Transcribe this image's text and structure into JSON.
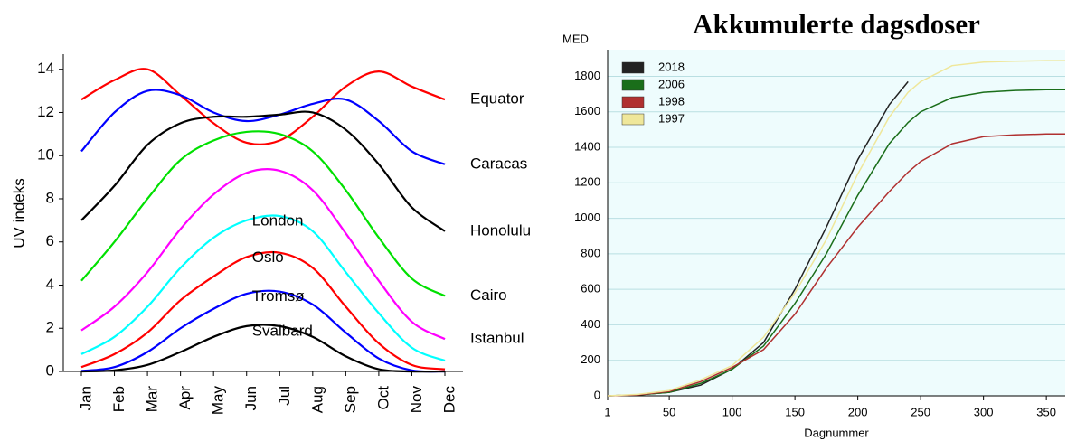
{
  "chart_data": [
    {
      "type": "line",
      "y_label": "UV indeks",
      "categories": [
        "Jan",
        "Feb",
        "Mar",
        "Apr",
        "May",
        "Jun",
        "Jul",
        "Aug",
        "Sep",
        "Oct",
        "Nov",
        "Dec"
      ],
      "ylim": [
        0,
        14.7
      ],
      "yticks": [
        0,
        2,
        4,
        6,
        8,
        10,
        12,
        14
      ],
      "series": [
        {
          "name": "Equator",
          "color": "#ff0000",
          "values": [
            12.6,
            13.5,
            14.0,
            12.8,
            11.5,
            10.6,
            10.7,
            11.8,
            13.2,
            13.9,
            13.2,
            12.6
          ]
        },
        {
          "name": "Caracas",
          "color": "#0000ff",
          "values": [
            10.2,
            12.0,
            13.0,
            12.8,
            12.0,
            11.6,
            11.9,
            12.4,
            12.6,
            11.6,
            10.2,
            9.6
          ]
        },
        {
          "name": "Honolulu",
          "color": "#000000",
          "values": [
            7.0,
            8.6,
            10.5,
            11.5,
            11.8,
            11.8,
            11.9,
            12.0,
            11.2,
            9.6,
            7.6,
            6.5
          ]
        },
        {
          "name": "Cairo",
          "color": "#00e000",
          "values": [
            4.2,
            6.0,
            8.0,
            9.8,
            10.7,
            11.1,
            11.0,
            10.2,
            8.4,
            6.2,
            4.3,
            3.5
          ]
        },
        {
          "name": "Istanbul",
          "color": "#ff00ff",
          "values": [
            1.9,
            3.0,
            4.6,
            6.6,
            8.2,
            9.2,
            9.3,
            8.4,
            6.4,
            4.2,
            2.3,
            1.5
          ]
        },
        {
          "name": "London",
          "color": "#00ffff",
          "values": [
            0.8,
            1.6,
            3.0,
            4.8,
            6.2,
            7.0,
            7.2,
            6.5,
            4.6,
            2.7,
            1.1,
            0.5
          ]
        },
        {
          "name": "Oslo",
          "color": "#ff0000",
          "values": [
            0.2,
            0.8,
            1.8,
            3.3,
            4.4,
            5.3,
            5.5,
            4.8,
            3.0,
            1.3,
            0.3,
            0.1
          ]
        },
        {
          "name": "Tromsø",
          "color": "#0000ff",
          "values": [
            0.02,
            0.2,
            0.9,
            2.0,
            2.9,
            3.6,
            3.7,
            3.1,
            1.8,
            0.6,
            0.05,
            0
          ]
        },
        {
          "name": "Svalbard",
          "color": "#000000",
          "values": [
            0,
            0.05,
            0.3,
            0.9,
            1.6,
            2.1,
            2.1,
            1.6,
            0.7,
            0.1,
            0,
            0
          ]
        }
      ]
    },
    {
      "type": "line",
      "title": "Akkumulerte dagsdoser",
      "y_label": "MED",
      "x_label": "Dagnummer",
      "x": [
        1,
        25,
        50,
        75,
        100,
        125,
        150,
        175,
        200,
        225,
        240,
        250,
        275,
        300,
        325,
        350,
        365
      ],
      "xlim": [
        1,
        365
      ],
      "xticks": [
        1,
        50,
        100,
        150,
        200,
        250,
        300,
        350
      ],
      "ylim": [
        0,
        1950
      ],
      "yticks": [
        0,
        200,
        400,
        600,
        800,
        1000,
        1200,
        1400,
        1600,
        1800
      ],
      "grid": true,
      "legend": "top-left",
      "series": [
        {
          "name": "2018",
          "color": "#222222",
          "values": [
            0,
            5,
            20,
            60,
            150,
            300,
            600,
            950,
            1330,
            1640,
            1770,
            null,
            null,
            null,
            null,
            null,
            null
          ]
        },
        {
          "name": "2006",
          "color": "#1a6e1a",
          "values": [
            0,
            5,
            20,
            70,
            150,
            280,
            520,
            800,
            1130,
            1420,
            1540,
            1600,
            1680,
            1710,
            1720,
            1725,
            1725
          ]
        },
        {
          "name": "1998",
          "color": "#b03030",
          "values": [
            0,
            5,
            25,
            80,
            160,
            260,
            460,
            720,
            950,
            1150,
            1260,
            1320,
            1420,
            1460,
            1470,
            1475,
            1475
          ]
        },
        {
          "name": "1997",
          "color": "#efe79a",
          "values": [
            0,
            8,
            30,
            90,
            170,
            330,
            580,
            880,
            1250,
            1570,
            1710,
            1770,
            1860,
            1880,
            1885,
            1888,
            1888
          ]
        }
      ]
    }
  ]
}
